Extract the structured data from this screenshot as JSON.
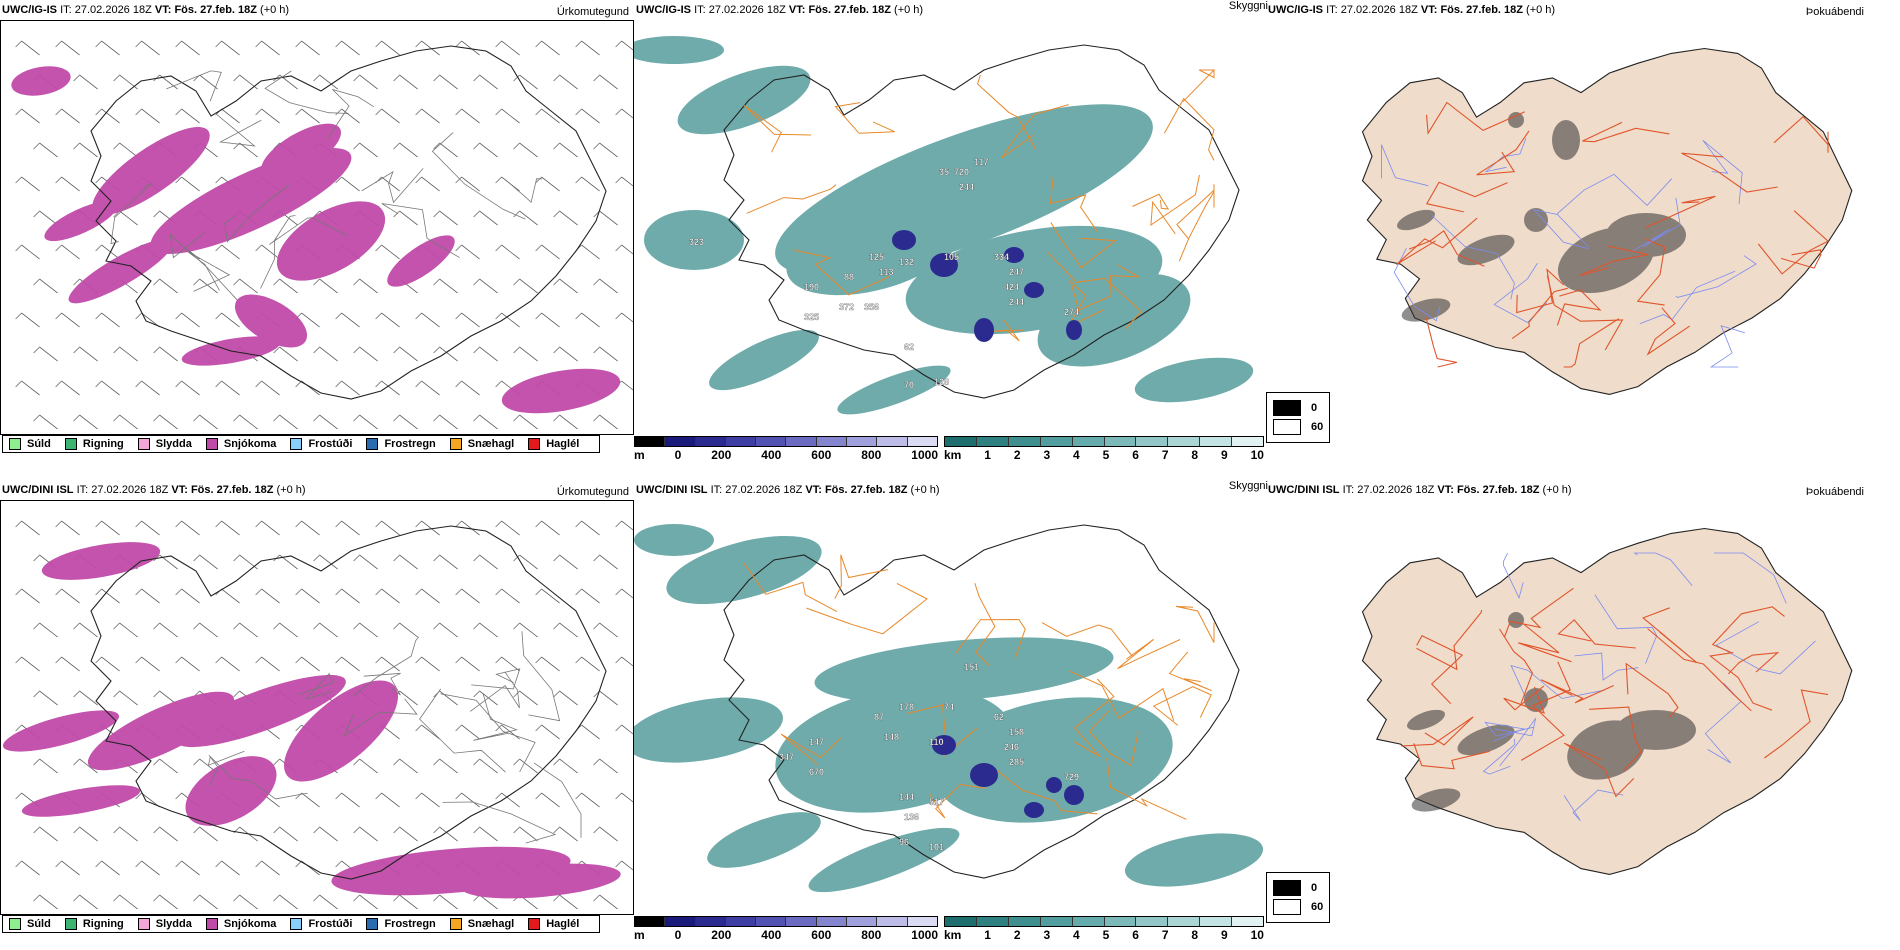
{
  "header": {
    "it_label": "IT:",
    "it_value": "27.02.2026 18Z",
    "vt_label": "VT:",
    "vt_value": "Fös. 27.feb. 18Z",
    "offset": "(+0 h)"
  },
  "rows": [
    {
      "model": "UWC/IG-IS"
    },
    {
      "model": "UWC/DINI ISL"
    }
  ],
  "panel_titles": {
    "precip": "Úrkomutegund",
    "cloud": "Skyggni",
    "fog": "Þokuábendi"
  },
  "precip_legend": [
    {
      "label": "Súld",
      "color": "#90ee90"
    },
    {
      "label": "Rigning",
      "color": "#3cb371"
    },
    {
      "label": "Slydda",
      "color": "#f4a6d7"
    },
    {
      "label": "Snjókoma",
      "color": "#c04aa8"
    },
    {
      "label": "Frostúði",
      "color": "#87cefa"
    },
    {
      "label": "Frostregn",
      "color": "#2b6cb0"
    },
    {
      "label": "Snæhagl",
      "color": "#f5a623"
    },
    {
      "label": "Haglél",
      "color": "#e31a1c"
    }
  ],
  "cloudbase_bar": {
    "unit": "m",
    "ticks": [
      "0",
      "200",
      "400",
      "600",
      "800",
      "1000"
    ],
    "colors": [
      "#000000",
      "#1a1a7a",
      "#2b2b8f",
      "#3d3da3",
      "#5252b3",
      "#6b6bc2",
      "#8585cf",
      "#a0a0dc",
      "#bdbde8",
      "#dadaf3"
    ]
  },
  "visibility_bar": {
    "unit": "km",
    "ticks": [
      "1",
      "2",
      "3",
      "4",
      "5",
      "6",
      "7",
      "8",
      "9",
      "10"
    ],
    "colors": [
      "#1f6e6e",
      "#2f8080",
      "#3f8f8f",
      "#529e9e",
      "#66abab",
      "#7cb9b9",
      "#93c7c7",
      "#abd5d5",
      "#c4e3e3",
      "#e2f1f1"
    ]
  },
  "fog_legend": [
    {
      "label": "0",
      "color": "#000000"
    },
    {
      "label": "60",
      "color": "#ffffff"
    }
  ],
  "cloud_labels_top": [
    "35",
    "720",
    "117",
    "244",
    "323",
    "125",
    "113",
    "132",
    "105",
    "334",
    "247",
    "88",
    "190",
    "372",
    "356",
    "325",
    "424",
    "244",
    "274",
    "62",
    "70",
    "128"
  ],
  "cloud_labels_bottom": [
    "151",
    "87",
    "178",
    "74",
    "62",
    "158",
    "148",
    "147",
    "110",
    "246",
    "285",
    "347",
    "670",
    "729",
    "144",
    "517",
    "136",
    "96",
    "101"
  ]
}
